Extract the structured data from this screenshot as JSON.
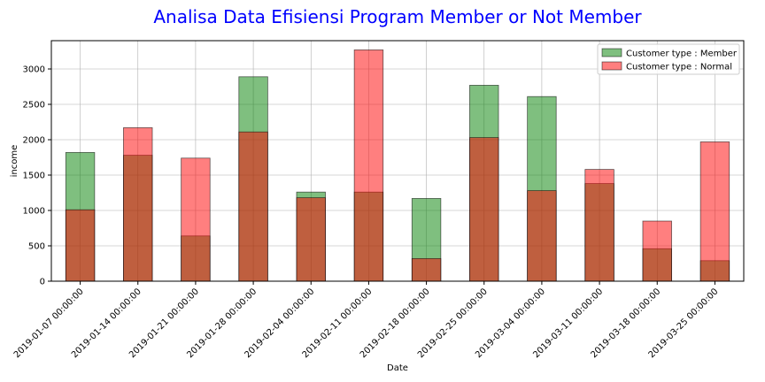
{
  "chart_data": {
    "type": "bar",
    "title": "Analisa Data Efisiensi Program Member or Not Member",
    "xlabel": "Date",
    "ylabel": "income",
    "categories": [
      "2019-01-07 00:00:00",
      "2019-01-14 00:00:00",
      "2019-01-21 00:00:00",
      "2019-01-28 00:00:00",
      "2019-02-04 00:00:00",
      "2019-02-11 00:00:00",
      "2019-02-18 00:00:00",
      "2019-02-25 00:00:00",
      "2019-03-04 00:00:00",
      "2019-03-11 00:00:00",
      "2019-03-18 00:00:00",
      "2019-03-25 00:00:00"
    ],
    "series": [
      {
        "name": "Customer type : Member",
        "color": "#008000",
        "values": [
          1820,
          1780,
          640,
          2890,
          1260,
          1260,
          1170,
          2770,
          2610,
          1380,
          460,
          290
        ]
      },
      {
        "name": "Customer type : Normal",
        "color": "#ff0000",
        "values": [
          1010,
          2170,
          1740,
          2110,
          1180,
          3270,
          320,
          2030,
          1280,
          1580,
          850,
          1970
        ]
      }
    ],
    "ylim": [
      0,
      3400
    ],
    "yticks": [
      0,
      500,
      1000,
      1500,
      2000,
      2500,
      3000
    ],
    "grid": true,
    "legend_position": "top-right",
    "title_color": "#0000ff"
  }
}
